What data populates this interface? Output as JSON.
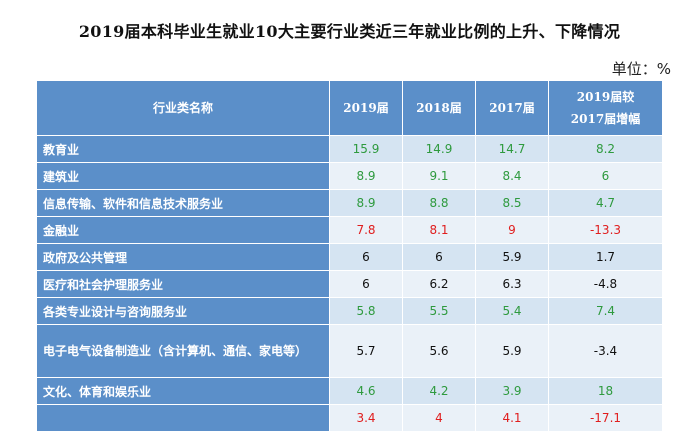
{
  "title": "2019届本科毕业生就业10大主要行业类近三年就业比例的上升、下降情况",
  "unit": "单位：%",
  "columns": [
    "行业类名称",
    "2019届",
    "2018届",
    "2017届",
    "2019届较\n2017届增幅"
  ],
  "rows": [
    {
      "name": "教育业",
      "values": [
        "15.9",
        "14.9",
        "14.7",
        "8.2"
      ],
      "tone": "green"
    },
    {
      "name": "建筑业",
      "values": [
        "8.9",
        "9.1",
        "8.4",
        "6"
      ],
      "tone": "green"
    },
    {
      "name": "信息传输、软件和信息技术服务业",
      "values": [
        "8.9",
        "8.8",
        "8.5",
        "4.7"
      ],
      "tone": "green"
    },
    {
      "name": "金融业",
      "values": [
        "7.8",
        "8.1",
        "9",
        "-13.3"
      ],
      "tone": "red"
    },
    {
      "name": "政府及公共管理",
      "values": [
        "6",
        "6",
        "5.9",
        "1.7"
      ],
      "tone": "black"
    },
    {
      "name": "医疗和社会护理服务业",
      "values": [
        "6",
        "6.2",
        "6.3",
        "-4.8"
      ],
      "tone": "black"
    },
    {
      "name": "各类专业设计与咨询服务业",
      "values": [
        "5.8",
        "5.5",
        "5.4",
        "7.4"
      ],
      "tone": "green"
    },
    {
      "name": "电子电气设备制造业（含计算机、通信、家电等）",
      "values": [
        "5.7",
        "5.6",
        "5.9",
        "-3.4"
      ],
      "tone": "black"
    },
    {
      "name": "文化、体育和娱乐业",
      "values": [
        "4.6",
        "4.2",
        "3.9",
        "18"
      ],
      "tone": "green"
    },
    {
      "name": "",
      "values": [
        "3.4",
        "4",
        "4.1",
        "-17.1"
      ],
      "tone": "red"
    }
  ]
}
